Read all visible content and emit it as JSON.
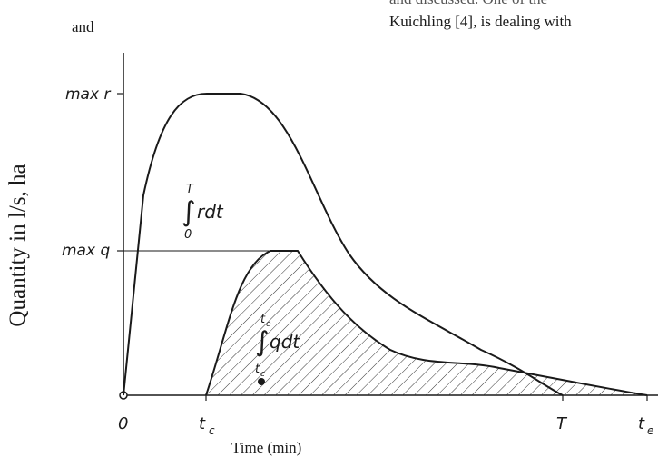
{
  "text": {
    "top_left": "and",
    "top_right_line1": "and discussed. One of the",
    "top_right_line2": "Kuichling [4], is dealing with",
    "y_axis_label": "Quantity in l/s, ha",
    "x_axis_label": "Time (min)"
  },
  "ticks": {
    "y_max_r": "max r",
    "y_max_q": "max q",
    "x_origin": "0",
    "x_tc": "t",
    "x_tc_sub": "c",
    "x_T": "T",
    "x_te": "t",
    "x_te_sub": "e"
  },
  "integrals": {
    "rain": {
      "upper": "T",
      "lower": "0",
      "body": "rdt"
    },
    "runoff": {
      "upper": "t",
      "upper_sub": "e",
      "lower": "t",
      "lower_sub": "c",
      "body": "qdt"
    }
  },
  "colors": {
    "ink": "#1a1a1a",
    "hatch": "#333333",
    "background": "#ffffff"
  }
}
